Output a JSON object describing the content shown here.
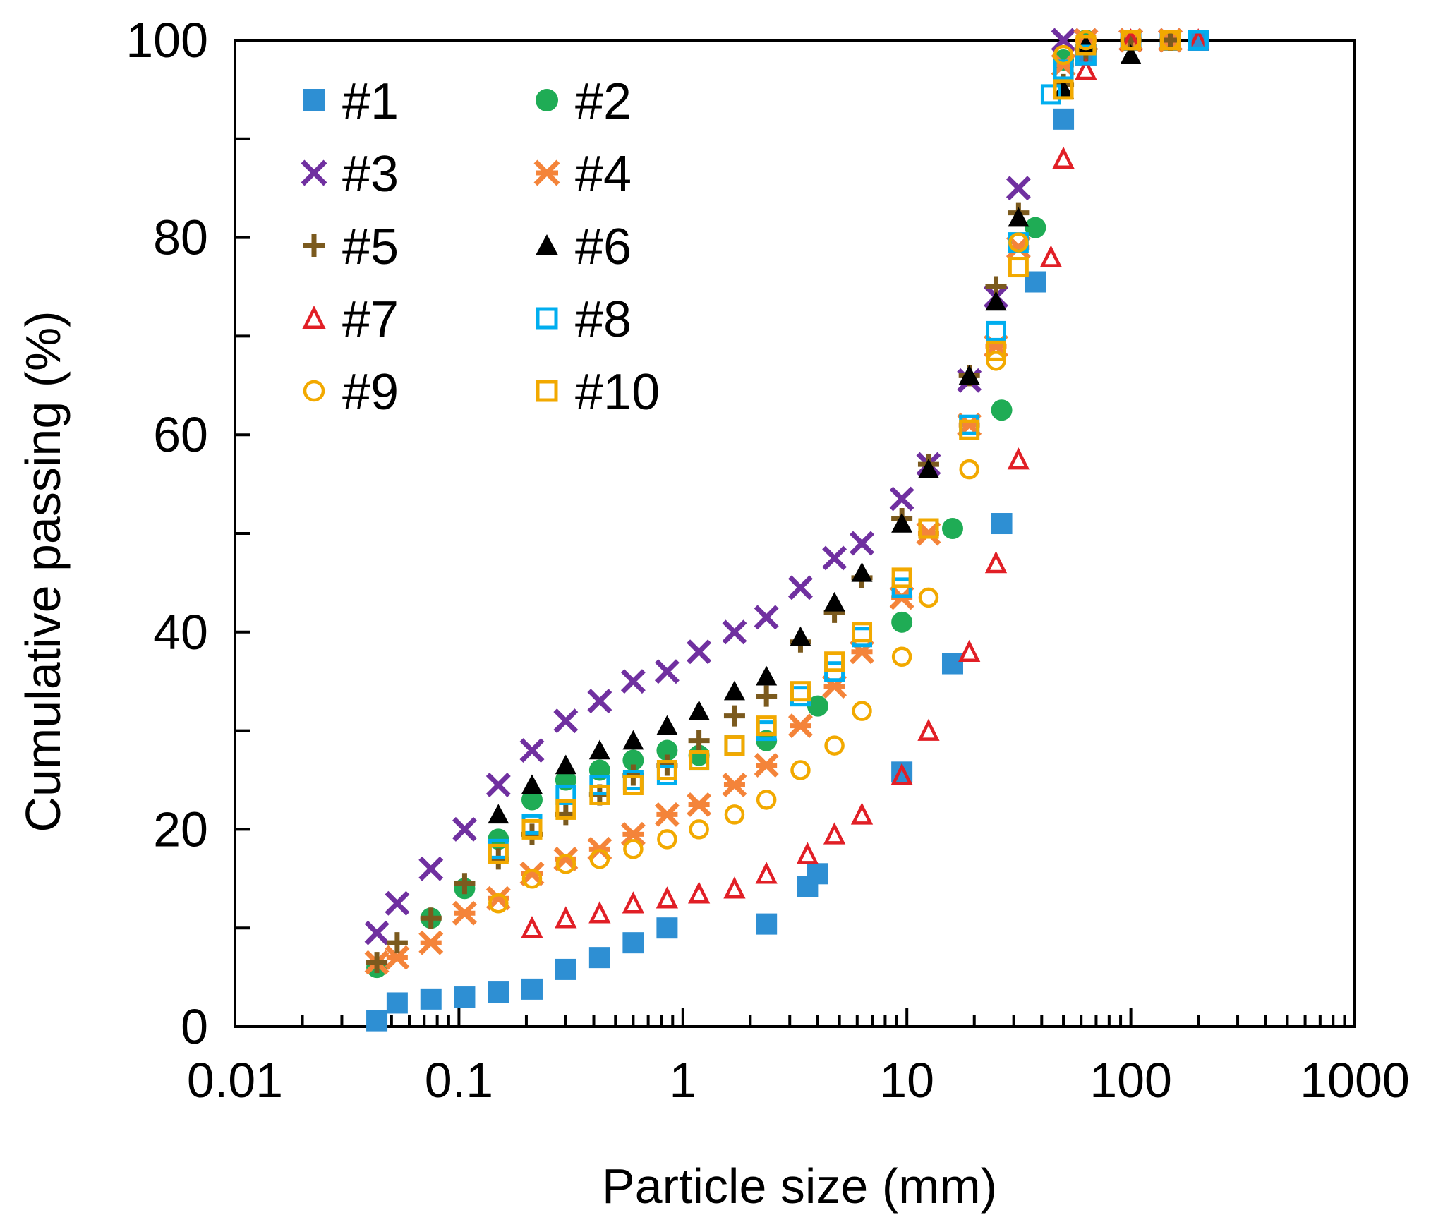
{
  "chart_data": {
    "type": "scatter",
    "xlabel": "Particle size (mm)",
    "ylabel": "Cumulative passing (%)",
    "x_scale": "log",
    "xlim": [
      0.01,
      1000
    ],
    "ylim": [
      0,
      100
    ],
    "xticks": [
      "0.01",
      "0.1",
      "1",
      "10",
      "100",
      "1000"
    ],
    "yticks": [
      "0",
      "20",
      "40",
      "60",
      "80",
      "100"
    ],
    "grid": false,
    "legend_position": "top-left",
    "series": [
      {
        "name": "#1",
        "marker": "square-filled",
        "color": "#2e8fd3",
        "x": [
          0.043,
          0.053,
          0.075,
          0.106,
          0.15,
          0.212,
          0.3,
          0.425,
          0.6,
          0.85,
          2.36,
          3.6,
          4.0,
          9.5,
          16.0,
          26.5,
          37.5,
          50,
          63,
          100,
          150,
          200
        ],
        "y": [
          0.6,
          2.4,
          2.8,
          3.0,
          3.5,
          3.8,
          5.8,
          7.0,
          8.5,
          10.0,
          10.4,
          14.2,
          15.5,
          25.8,
          36.8,
          51.0,
          75.5,
          92.0,
          98.5,
          100,
          100,
          100
        ]
      },
      {
        "name": "#2",
        "marker": "circle-filled",
        "color": "#1fac55",
        "x": [
          0.043,
          0.075,
          0.106,
          0.15,
          0.212,
          0.3,
          0.425,
          0.6,
          0.85,
          1.18,
          2.36,
          4.0,
          9.5,
          16.0,
          26.5,
          37.5,
          50,
          63,
          100,
          150
        ],
        "y": [
          6.0,
          11.0,
          14.0,
          19.0,
          23.0,
          25.0,
          26.0,
          27.0,
          28.0,
          27.5,
          29.0,
          32.5,
          41.0,
          50.5,
          62.5,
          81.0,
          98.0,
          100,
          100,
          100
        ]
      },
      {
        "name": "#3",
        "marker": "x",
        "color": "#7030a0",
        "x": [
          0.043,
          0.053,
          0.075,
          0.106,
          0.15,
          0.212,
          0.3,
          0.425,
          0.6,
          0.85,
          1.18,
          1.7,
          2.36,
          3.35,
          4.75,
          6.3,
          9.5,
          12.5,
          19.0,
          25.0,
          31.5,
          50,
          63,
          100,
          150
        ],
        "y": [
          9.5,
          12.5,
          16.0,
          20.0,
          24.5,
          28.0,
          31.0,
          33.0,
          35.0,
          36.0,
          38.0,
          40.0,
          41.5,
          44.5,
          47.5,
          49.0,
          53.5,
          57.0,
          65.5,
          74.0,
          85.0,
          100,
          100,
          100,
          100
        ]
      },
      {
        "name": "#4",
        "marker": "asterisk",
        "color": "#f4843a",
        "x": [
          0.043,
          0.053,
          0.075,
          0.106,
          0.15,
          0.212,
          0.3,
          0.425,
          0.6,
          0.85,
          1.18,
          1.7,
          2.36,
          3.35,
          4.75,
          6.3,
          9.5,
          12.5,
          19.0,
          25.0,
          31.5,
          50,
          63,
          100,
          150
        ],
        "y": [
          6.5,
          7.0,
          8.5,
          11.5,
          13.0,
          15.5,
          17.0,
          18.0,
          19.5,
          21.5,
          22.5,
          24.5,
          26.5,
          30.5,
          34.5,
          38.0,
          43.5,
          50.0,
          61.0,
          69.0,
          79.0,
          97.5,
          100,
          100,
          100
        ]
      },
      {
        "name": "#5",
        "marker": "plus",
        "color": "#7b5a1e",
        "x": [
          0.043,
          0.053,
          0.075,
          0.106,
          0.15,
          0.212,
          0.3,
          0.425,
          0.6,
          0.85,
          1.18,
          1.7,
          2.36,
          3.35,
          4.75,
          6.3,
          9.5,
          12.5,
          19.0,
          25.0,
          31.5,
          50,
          63,
          100,
          150
        ],
        "y": [
          6.5,
          8.5,
          11.0,
          14.5,
          17.0,
          19.5,
          21.5,
          23.5,
          25.5,
          26.5,
          29.0,
          31.5,
          33.5,
          39.0,
          42.0,
          45.5,
          51.5,
          57.0,
          66.0,
          75.0,
          82.5,
          95.5,
          99.0,
          100,
          100
        ]
      },
      {
        "name": "#6",
        "marker": "triangle-filled",
        "color": "#000000",
        "x": [
          0.15,
          0.212,
          0.3,
          0.425,
          0.6,
          0.85,
          1.18,
          1.7,
          2.36,
          3.35,
          4.75,
          6.3,
          9.5,
          12.5,
          19.0,
          25.0,
          31.5,
          50,
          63,
          100
        ],
        "y": [
          21.5,
          24.5,
          26.5,
          28.0,
          29.0,
          30.5,
          32.0,
          34.0,
          35.5,
          39.5,
          43.0,
          46.0,
          51.0,
          56.5,
          66.0,
          73.5,
          82.0,
          95.0,
          99.5,
          98.5
        ]
      },
      {
        "name": "#7",
        "marker": "triangle-open",
        "color": "#e11f26",
        "x": [
          0.212,
          0.3,
          0.425,
          0.6,
          0.85,
          1.18,
          1.7,
          2.36,
          3.6,
          4.75,
          6.3,
          9.5,
          12.5,
          19.0,
          25.0,
          31.5,
          44.0,
          50,
          63,
          100,
          200
        ],
        "y": [
          10.0,
          11.0,
          11.5,
          12.5,
          13.0,
          13.5,
          14.0,
          15.5,
          17.5,
          19.5,
          21.5,
          25.5,
          30.0,
          38.0,
          47.0,
          57.5,
          78.0,
          88.0,
          97.0,
          100,
          100
        ]
      },
      {
        "name": "#8",
        "marker": "square-open",
        "color": "#00aeef",
        "x": [
          0.15,
          0.212,
          0.3,
          0.425,
          0.6,
          0.85,
          1.18,
          1.7,
          2.36,
          3.35,
          4.75,
          6.3,
          9.5,
          12.5,
          19.0,
          25.0,
          31.5,
          44.0,
          50,
          63,
          100,
          150,
          200
        ],
        "y": [
          18.0,
          20.5,
          23.5,
          24.5,
          25.0,
          25.5,
          27.0,
          28.5,
          30.0,
          33.5,
          36.0,
          39.5,
          44.5,
          50.5,
          61.0,
          70.5,
          79.5,
          94.5,
          97.0,
          98.5,
          100,
          100,
          100
        ]
      },
      {
        "name": "#9",
        "marker": "circle-open",
        "color": "#f2a900",
        "x": [
          0.15,
          0.212,
          0.3,
          0.425,
          0.6,
          0.85,
          1.18,
          1.7,
          2.36,
          3.35,
          4.75,
          6.3,
          9.5,
          12.5,
          19.0,
          25.0,
          31.5,
          50,
          63,
          100,
          150
        ],
        "y": [
          12.5,
          15.0,
          16.5,
          17.0,
          18.0,
          19.0,
          20.0,
          21.5,
          23.0,
          26.0,
          28.5,
          32.0,
          37.5,
          43.5,
          56.5,
          67.5,
          79.5,
          98.5,
          100,
          100,
          100
        ]
      },
      {
        "name": "#10",
        "marker": "square-open",
        "color": "#f2a900",
        "x": [
          0.15,
          0.212,
          0.3,
          0.425,
          0.6,
          0.85,
          1.18,
          1.7,
          2.36,
          3.35,
          4.75,
          6.3,
          9.5,
          12.5,
          19.0,
          25.0,
          31.5,
          50,
          63,
          100,
          150
        ],
        "y": [
          17.5,
          20.0,
          22.0,
          23.5,
          24.5,
          26.0,
          27.0,
          28.5,
          30.5,
          34.0,
          37.0,
          40.0,
          45.5,
          50.5,
          60.5,
          68.5,
          77.0,
          95.0,
          99.5,
          100,
          100
        ]
      }
    ]
  }
}
